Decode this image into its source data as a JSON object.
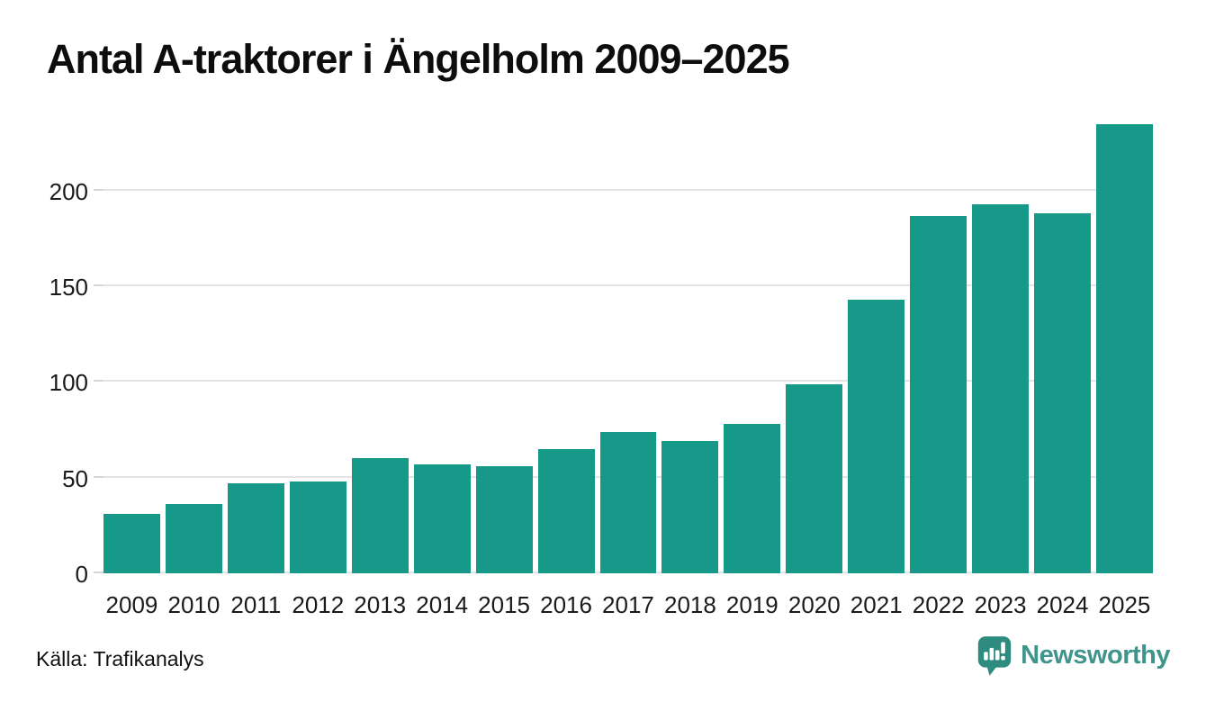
{
  "title": "Antal A-traktorer i Ängelholm 2009–2025",
  "source": "Källa: Trafikanalys",
  "branding": {
    "name": "Newsworthy",
    "icon": "newsworthy-bubble-chart-icon"
  },
  "colors": {
    "bar": "#17998a",
    "gridline": "#e4e4e4",
    "tick": "#d6d6d6",
    "title_text": "#0d0d0d",
    "axis_text": "#1a1a1a",
    "source_text": "#101010",
    "logo_teal": "#3f948b",
    "background": "#ffffff"
  },
  "chart_data": {
    "type": "bar",
    "title": "Antal A-traktorer i Ängelholm 2009–2025",
    "categories": [
      "2009",
      "2010",
      "2011",
      "2012",
      "2013",
      "2014",
      "2015",
      "2016",
      "2017",
      "2018",
      "2019",
      "2020",
      "2021",
      "2022",
      "2023",
      "2024",
      "2025"
    ],
    "values": [
      31,
      36,
      47,
      48,
      60,
      57,
      56,
      65,
      74,
      69,
      78,
      99,
      143,
      187,
      193,
      188,
      235
    ],
    "xlabel": "",
    "ylabel": "",
    "yticks": [
      0,
      50,
      100,
      150,
      200
    ],
    "ylim": [
      0,
      247
    ],
    "grid": true,
    "legend_position": "none",
    "bar_color": "#17998a"
  }
}
